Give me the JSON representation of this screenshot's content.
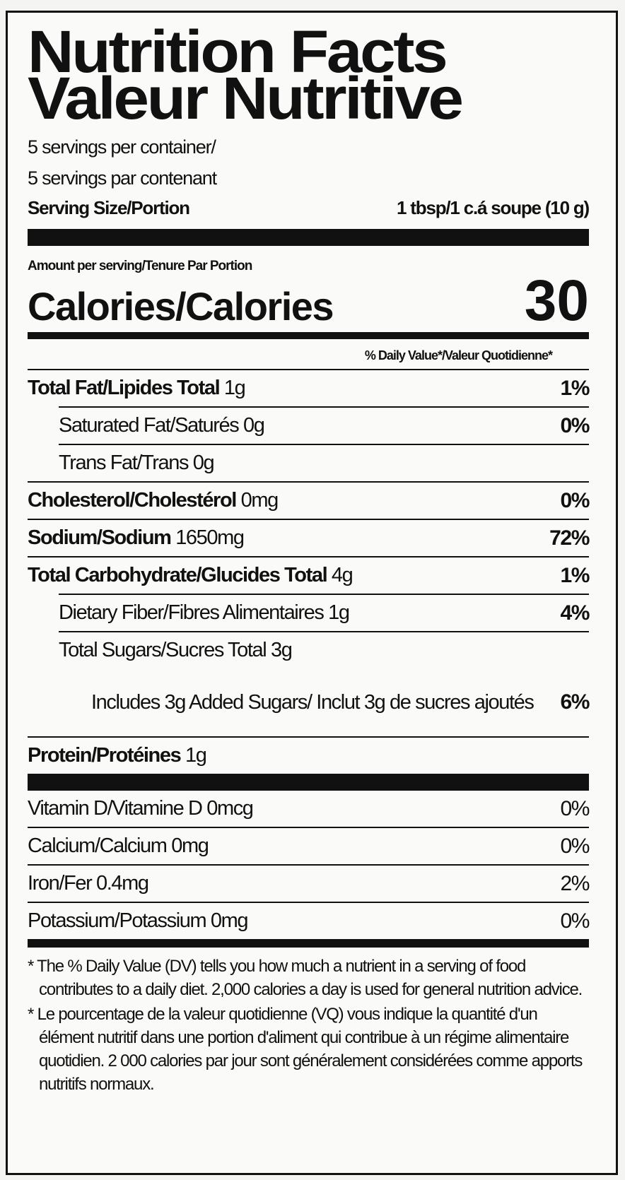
{
  "title_en": "Nutrition Facts",
  "title_fr": "Valeur Nutritive",
  "servings_en": "5 servings per container/",
  "servings_fr": "5 servings par contenant",
  "serving_size_label": "Serving Size/Portion",
  "serving_size_value": "1 tbsp/1 c.á soupe (10 g)",
  "amount_per_serving": "Amount per serving/Tenure Par Portion",
  "calories_label": "Calories/Calories",
  "calories_value": "30",
  "dv_header": "% Daily Value*/Valeur Quotidienne*",
  "nutrients": [
    {
      "name": "Total Fat/Lipides Total",
      "amount": "1g",
      "dv": "1%",
      "bold": true,
      "indent": 0
    },
    {
      "name": "Saturated Fat/Saturés",
      "amount": "0g",
      "dv": "0%",
      "bold": false,
      "indent": 1
    },
    {
      "name": "Trans Fat/Trans",
      "amount": "0g",
      "dv": "",
      "bold": false,
      "indent": 1
    },
    {
      "name": "Cholesterol/Cholestérol",
      "amount": "0mg",
      "dv": "0%",
      "bold": true,
      "indent": 0
    },
    {
      "name": "Sodium/Sodium",
      "amount": "1650mg",
      "dv": "72%",
      "bold": true,
      "indent": 0
    },
    {
      "name": "Total Carbohydrate/Glucides Total",
      "amount": "4g",
      "dv": "1%",
      "bold": true,
      "indent": 0
    },
    {
      "name": "Dietary Fiber/Fibres Alimentaires",
      "amount": "1g",
      "dv": "4%",
      "bold": false,
      "indent": 1
    },
    {
      "name": "Total Sugars/Sucres Total",
      "amount": "3g",
      "dv": "",
      "bold": false,
      "indent": 1
    },
    {
      "name": "Includes 3g Added Sugars/ Inclut 3g de sucres ajoutés",
      "amount": "",
      "dv": "6%",
      "bold": false,
      "indent": 2
    },
    {
      "name": "Protein/Protéines",
      "amount": "1g",
      "dv": "",
      "bold": true,
      "indent": 0
    }
  ],
  "vitamins": [
    {
      "name": "Vitamin D/Vitamine D",
      "amount": "0mcg",
      "dv": "0%"
    },
    {
      "name": "Calcium/Calcium",
      "amount": "0mg",
      "dv": "0%"
    },
    {
      "name": "Iron/Fer",
      "amount": "0.4mg",
      "dv": "2%"
    },
    {
      "name": "Potassium/Potassium",
      "amount": "0mg",
      "dv": "0%"
    }
  ],
  "footnote_en": "* The % Daily Value (DV) tells you how much a nutrient in a serving of food contributes to a daily diet. 2,000 calories a day is used for general nutrition advice.",
  "footnote_fr": "* Le pourcentage de la valeur quotidienne (VQ) vous indique la quantité d'un élément nutritif dans une portion d'aliment qui contribue à un régime alimentaire quotidien. 2 000 calories par jour sont généralement considérées comme apports nutritifs normaux."
}
